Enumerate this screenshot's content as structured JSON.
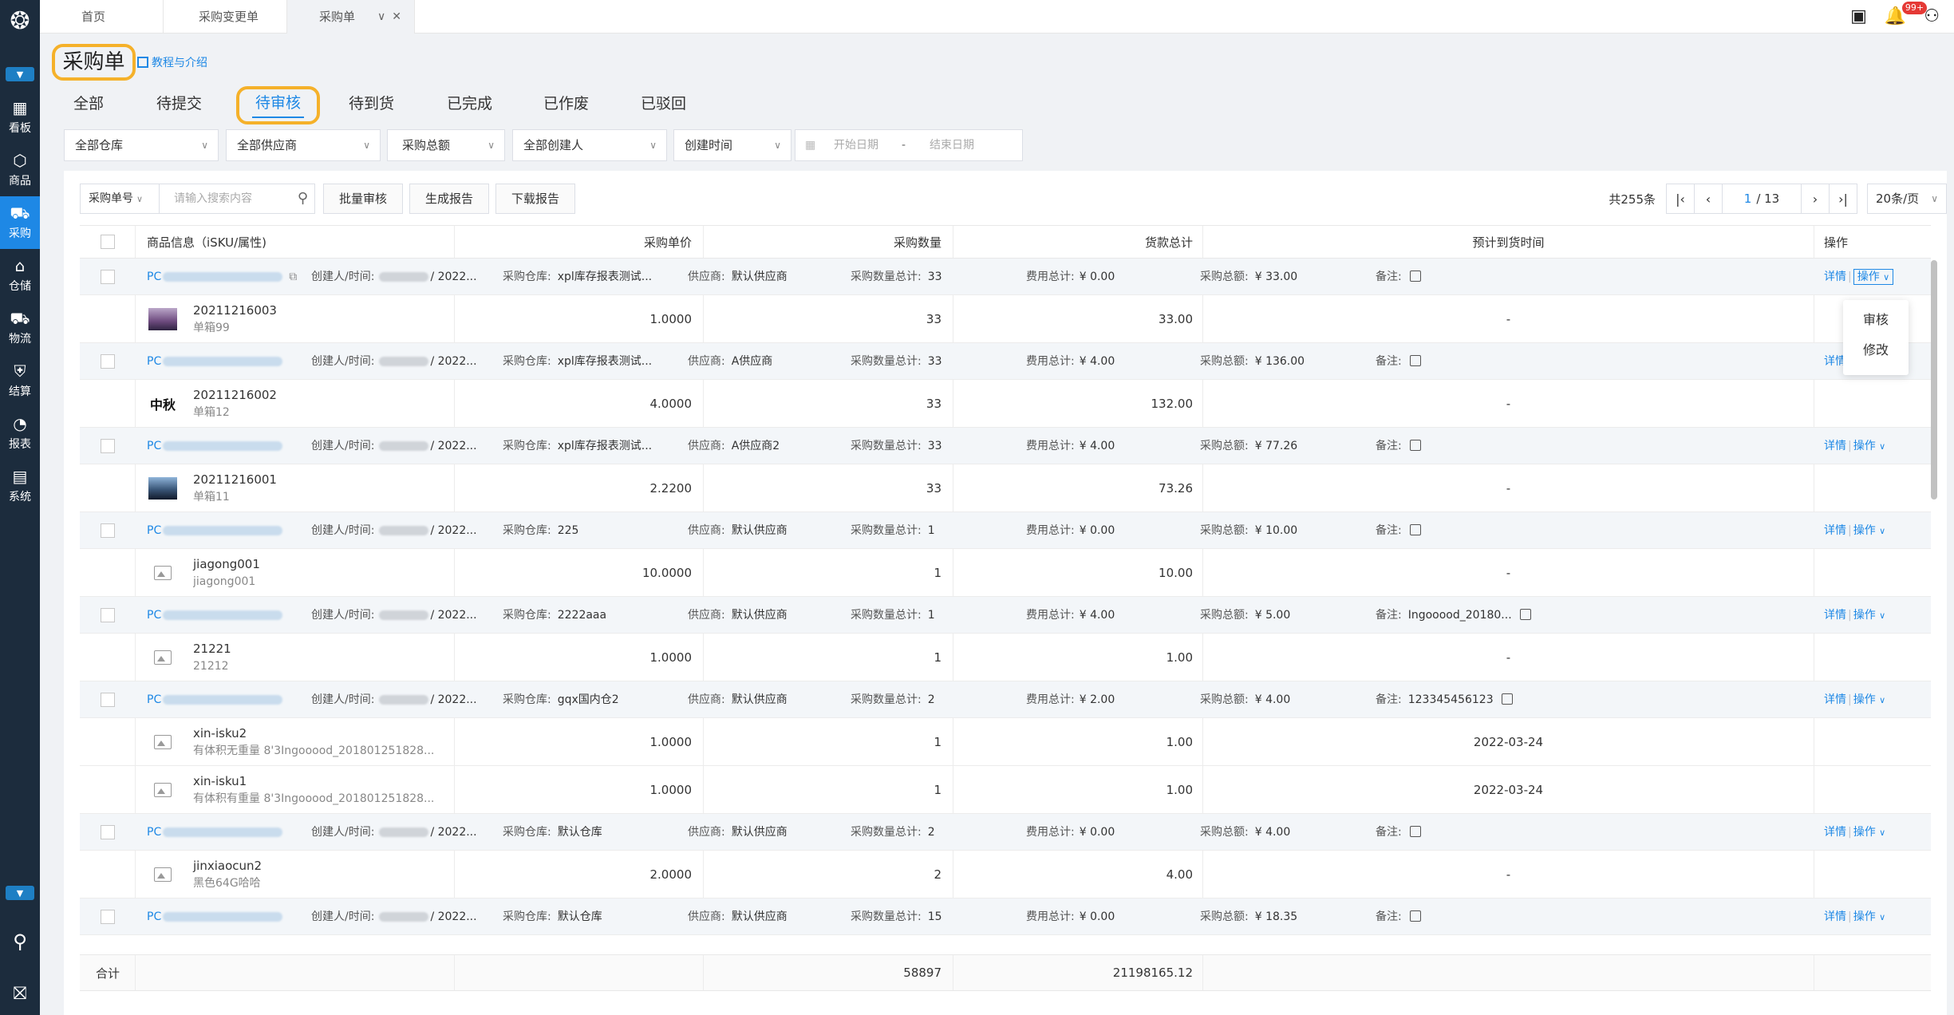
{
  "sidebar": {
    "items": [
      {
        "label": "看板",
        "icon": "dashboard-icon"
      },
      {
        "label": "商品",
        "icon": "box-icon"
      },
      {
        "label": "采购",
        "icon": "cart-icon"
      },
      {
        "label": "仓储",
        "icon": "warehouse-icon"
      },
      {
        "label": "物流",
        "icon": "truck-icon"
      },
      {
        "label": "结算",
        "icon": "shield-icon"
      },
      {
        "label": "报表",
        "icon": "chart-icon"
      },
      {
        "label": "系统",
        "icon": "system-icon"
      }
    ]
  },
  "topTabs": [
    {
      "label": "首页"
    },
    {
      "label": "采购变更单"
    },
    {
      "label": "采购单"
    }
  ],
  "topbar": {
    "badge": "99+"
  },
  "page": {
    "title": "采购单",
    "tutorial": "教程与介绍"
  },
  "statusTabs": [
    "全部",
    "待提交",
    "待审核",
    "待到货",
    "已完成",
    "已作废",
    "已驳回"
  ],
  "filters": {
    "warehouse": "全部仓库",
    "supplier": "全部供应商",
    "total": "采购总额",
    "creator": "全部创建人",
    "time": "创建时间",
    "start": "开始日期",
    "dash": "-",
    "end": "结束日期"
  },
  "toolbar": {
    "field": "采购单号",
    "search_placeholder": "请输入搜索内容",
    "batch_review": "批量审核",
    "gen_report": "生成报告",
    "download_report": "下载报告"
  },
  "pager": {
    "total": "共255条",
    "current": "1",
    "pages": "/ 13",
    "size": "20条/页"
  },
  "columns": {
    "info": "商品信息（iSKU/属性)",
    "price": "采购单价",
    "qty": "采购数量",
    "amount": "货款总计",
    "eta": "预计到货时间",
    "op": "操作"
  },
  "labels": {
    "creator": "创建人/时间:",
    "warehouse": "采购仓库:",
    "supplier": "供应商:",
    "qtyTotal": "采购数量总计:",
    "fee": "费用总计:",
    "totalAmt": "采购总额:",
    "remark": "备注:",
    "detail": "详情",
    "op": "操作",
    "sep": "|",
    "code": "PC",
    "year": "/ 2022..."
  },
  "orders": [
    {
      "warehouse": "xpl库存报表测试...",
      "supplier": "默认供应商",
      "qty": "33",
      "fee": "¥ 0.00",
      "total": "¥ 33.00",
      "remark": "",
      "items": [
        {
          "sku": "20211216003",
          "sub": "单箱99",
          "price": "1.0000",
          "qty": "33",
          "amt": "33.00",
          "eta": "-",
          "thumb": "pic1"
        }
      ]
    },
    {
      "warehouse": "xpl库存报表测试...",
      "supplier": "A供应商",
      "qty": "33",
      "fee": "¥ 4.00",
      "total": "¥ 136.00",
      "remark": "",
      "items": [
        {
          "sku": "20211216002",
          "sub": "单箱12",
          "price": "4.0000",
          "qty": "33",
          "amt": "132.00",
          "eta": "-",
          "thumb": "pic2"
        }
      ]
    },
    {
      "warehouse": "xpl库存报表测试...",
      "supplier": "A供应商2",
      "qty": "33",
      "fee": "¥ 4.00",
      "total": "¥ 77.26",
      "remark": "",
      "items": [
        {
          "sku": "20211216001",
          "sub": "单箱11",
          "price": "2.2200",
          "qty": "33",
          "amt": "73.26",
          "eta": "-",
          "thumb": "pic3"
        }
      ]
    },
    {
      "warehouse": "225",
      "supplier": "默认供应商",
      "qty": "1",
      "fee": "¥ 0.00",
      "total": "¥ 10.00",
      "remark": "",
      "items": [
        {
          "sku": "jiagong001",
          "sub": "jiagong001",
          "price": "10.0000",
          "qty": "1",
          "amt": "10.00",
          "eta": "-",
          "thumb": "ph"
        }
      ]
    },
    {
      "warehouse": "2222aaa",
      "supplier": "默认供应商",
      "qty": "1",
      "fee": "¥ 4.00",
      "total": "¥ 5.00",
      "remark": "Ingooood_20180...",
      "items": [
        {
          "sku": "21221",
          "sub": "21212",
          "price": "1.0000",
          "qty": "1",
          "amt": "1.00",
          "eta": "-",
          "thumb": "ph"
        }
      ]
    },
    {
      "warehouse": "gqx国内仓2",
      "supplier": "默认供应商",
      "qty": "2",
      "fee": "¥ 2.00",
      "total": "¥ 4.00",
      "remark": "123345456123",
      "items": [
        {
          "sku": "xin-isku2",
          "sub": "有体积无重量 8'3Ingooood_201801251828...",
          "price": "1.0000",
          "qty": "1",
          "amt": "1.00",
          "eta": "2022-03-24",
          "thumb": "ph"
        },
        {
          "sku": "xin-isku1",
          "sub": "有体积有重量 8'3Ingooood_201801251828...",
          "price": "1.0000",
          "qty": "1",
          "amt": "1.00",
          "eta": "2022-03-24",
          "thumb": "ph"
        }
      ]
    },
    {
      "warehouse": "默认仓库",
      "supplier": "默认供应商",
      "qty": "2",
      "fee": "¥ 0.00",
      "total": "¥ 4.00",
      "remark": "",
      "items": [
        {
          "sku": "jinxiaocun2",
          "sub": "黑色64G哈哈",
          "price": "2.0000",
          "qty": "2",
          "amt": "4.00",
          "eta": "-",
          "thumb": "ph"
        }
      ]
    },
    {
      "warehouse": "默认仓库",
      "supplier": "默认供应商",
      "qty": "15",
      "fee": "¥ 0.00",
      "total": "¥ 18.35",
      "remark": "",
      "items": []
    }
  ],
  "summary": {
    "label": "合计",
    "qty": "58897",
    "amount": "21198165.12"
  },
  "dropdown": {
    "review": "审核",
    "edit": "修改"
  },
  "colors": {
    "accent": "#1e88e5",
    "highlight": "#f5b12a",
    "sidebar": "#1c2c3d"
  }
}
